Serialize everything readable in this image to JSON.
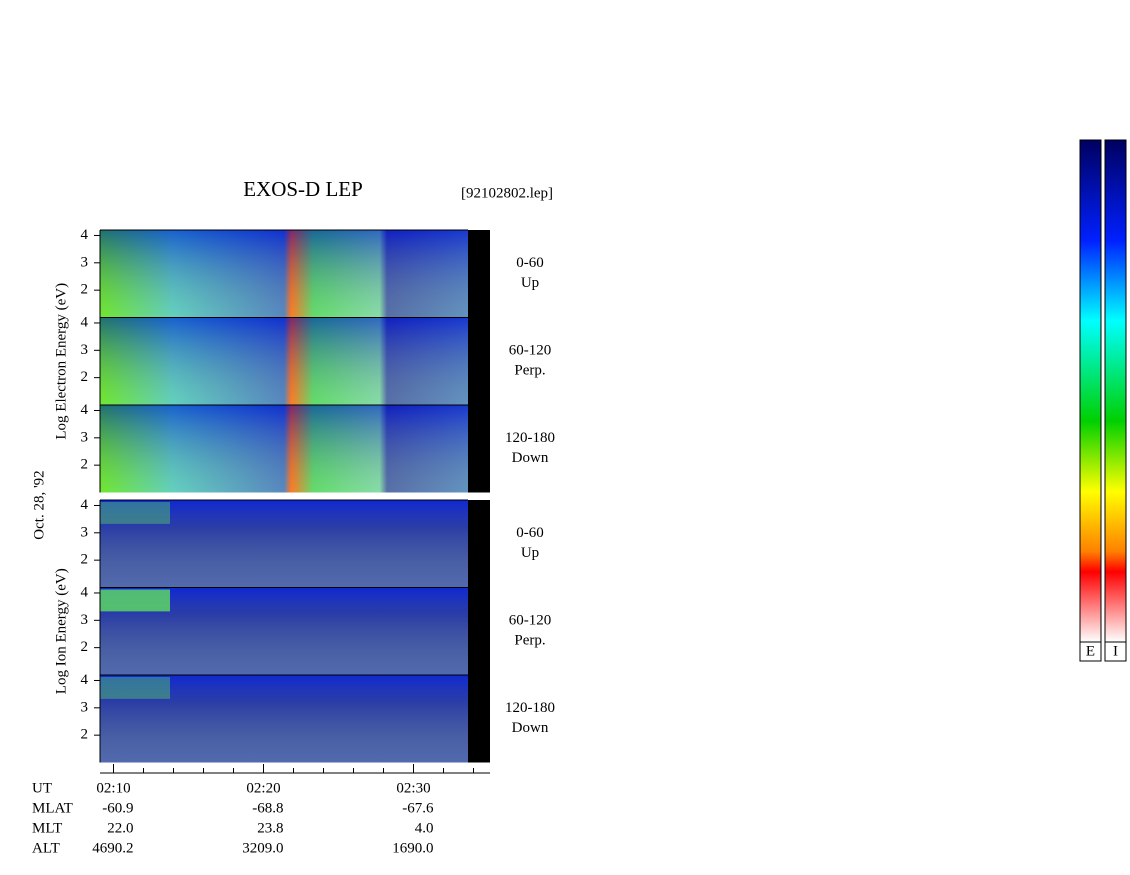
{
  "chart_data": {
    "type": "spectrogram",
    "title": "EXOS-D LEP",
    "file": "[92102802.lep]",
    "date": "Oct. 28, '92",
    "groups": [
      {
        "ylabel": "Log Electron Energy (eV)",
        "panels": [
          {
            "angle": "0-60",
            "direction": "Up"
          },
          {
            "angle": "60-120",
            "direction": "Perp."
          },
          {
            "angle": "120-180",
            "direction": "Down"
          }
        ]
      },
      {
        "ylabel": "Log Ion Energy (eV)",
        "panels": [
          {
            "angle": "0-60",
            "direction": "Up"
          },
          {
            "angle": "60-120",
            "direction": "Perp."
          },
          {
            "angle": "120-180",
            "direction": "Down"
          }
        ]
      }
    ],
    "ylim": [
      1,
      4.2
    ],
    "yticks": [
      2,
      3,
      4
    ],
    "xlim": [
      129.1,
      155.1
    ],
    "xticks": [
      {
        "value": 130,
        "label": "02:10"
      },
      {
        "value": 140,
        "label": "02:20"
      },
      {
        "value": 150,
        "label": "02:30"
      }
    ],
    "xminorticks": [
      132,
      134,
      136,
      138,
      142,
      144,
      146,
      148,
      152,
      154
    ],
    "xlabel": "UT",
    "ephemeris": [
      {
        "label": "MLAT",
        "cells": [
          "-60.9",
          "-68.8",
          "-67.6"
        ]
      },
      {
        "label": "MLT",
        "cells": [
          "22.0",
          "23.8",
          "4.0"
        ]
      },
      {
        "label": "ALT",
        "cells": [
          "4690.2",
          "3209.0",
          "1690.0"
        ]
      }
    ],
    "colorbars": [
      "E",
      "I"
    ]
  }
}
